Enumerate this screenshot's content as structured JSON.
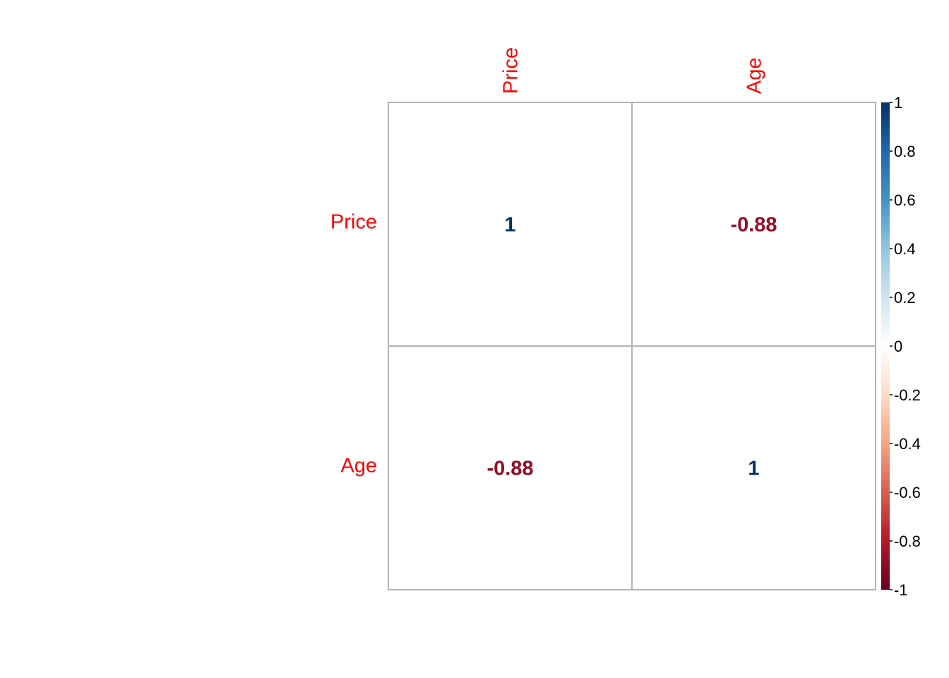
{
  "chart_data": {
    "type": "heatmap",
    "variables": [
      "Price",
      "Age"
    ],
    "matrix": [
      [
        1,
        -0.88
      ],
      [
        -0.88,
        1
      ]
    ],
    "cell_labels": [
      [
        "1",
        "-0.88"
      ],
      [
        "-0.88",
        "1"
      ]
    ],
    "value_range": [
      -1,
      1
    ],
    "colorbar": {
      "ticks": [
        1,
        0.8,
        0.6,
        0.4,
        0.2,
        0,
        -0.2,
        -0.4,
        -0.6,
        -0.8,
        -1
      ],
      "tick_labels": [
        "1",
        "0.8",
        "0.6",
        "0.4",
        "0.2",
        "0",
        "-0.2",
        "-0.4",
        "-0.6",
        "-0.8",
        "-1"
      ],
      "palette": [
        "#67001F",
        "#B2182B",
        "#D6604D",
        "#F4A582",
        "#FDDBC7",
        "#FFFFFF",
        "#D1E5F0",
        "#92C5DE",
        "#4393C3",
        "#2166AC",
        "#053061"
      ]
    },
    "cell_fill": "none",
    "grid": true,
    "label_color": "#FF0000",
    "legend_position": "right"
  }
}
